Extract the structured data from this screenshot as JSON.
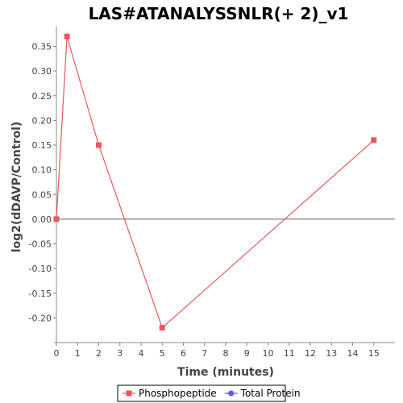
{
  "chart_data": {
    "type": "line",
    "title": "LAS#ATANALYSSNLR(+ 2)_v1",
    "xlabel": "Time (minutes)",
    "ylabel": "log2(dDAVP/Control)",
    "xlim": [
      0,
      16
    ],
    "ylim": [
      -0.25,
      0.39
    ],
    "xticks": [
      0,
      1,
      2,
      3,
      4,
      5,
      6,
      7,
      8,
      9,
      10,
      11,
      12,
      13,
      14,
      15
    ],
    "yticks": [
      -0.2,
      -0.15,
      -0.1,
      -0.05,
      0.0,
      0.05,
      0.1,
      0.15,
      0.2,
      0.25,
      0.3,
      0.35
    ],
    "ytick_labels": [
      "-0.20",
      "-0.15",
      "-0.10",
      "-0.05",
      "0.00",
      "0.05",
      "0.10",
      "0.15",
      "0.20",
      "0.25",
      "0.30",
      "0.35"
    ],
    "zero_line": true,
    "grid": false,
    "legend_position": "bottom-center",
    "series": [
      {
        "name": "Phosphopeptide",
        "color": "#e8585c",
        "marker": "square",
        "x": [
          0,
          0.5,
          2,
          5,
          15
        ],
        "y": [
          0.0,
          0.37,
          0.15,
          -0.22,
          0.16
        ]
      },
      {
        "name": "Total Protein",
        "color": "#5a5ae8",
        "marker": "circle",
        "x": [],
        "y": []
      }
    ]
  }
}
